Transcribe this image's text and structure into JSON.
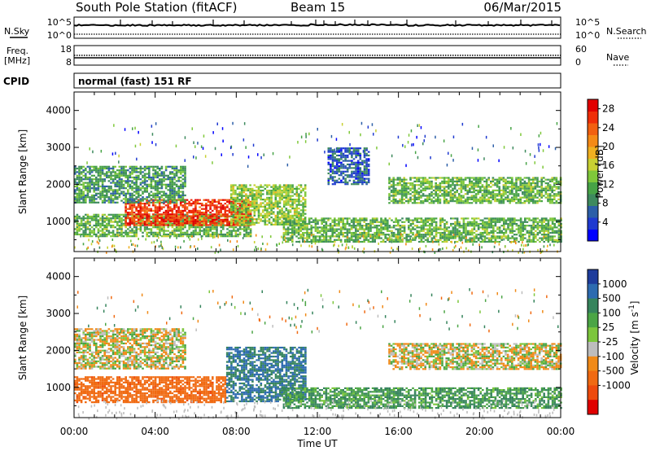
{
  "header": {
    "station": "South Pole Station (fitACF)",
    "beam": "Beam 15",
    "date": "06/Mar/2015"
  },
  "side_labels": {
    "nsky": "N.Sky",
    "nsearch": "N.Search",
    "freq_line1": "Freq.",
    "freq_line2": "[MHz]",
    "nave": "Nave",
    "cpid": "CPID"
  },
  "strip_ticks": {
    "noise_left_top": "10^5",
    "noise_left_bottom": "10^0",
    "noise_right_top": "10^5",
    "noise_right_bottom": "10^0",
    "freq_left_top": "18",
    "freq_left_bottom": "8",
    "nave_right_top": "60",
    "nave_right_bottom": "0"
  },
  "cpid_text": "normal (fast) 151 RF",
  "colors": {
    "power": [
      "#0000ff",
      "#1f3ad0",
      "#2c5fa8",
      "#3e8a5e",
      "#47a346",
      "#7fc83a",
      "#c8d032",
      "#f0b020",
      "#f58a16",
      "#f26010",
      "#ef2e08",
      "#e20000"
    ],
    "velocity_pos": [
      "#1e3c9c",
      "#2d6bb0",
      "#36845c",
      "#4ba545",
      "#7cc63c"
    ],
    "velocity_zero": "#bdbdbd",
    "velocity_neg": [
      "#f08a18",
      "#f06a12",
      "#ee4a0c",
      "#e00000"
    ]
  },
  "chart_data": [
    {
      "type": "heatmap",
      "title": "",
      "xlabel": "",
      "ylabel": "Slant Range [km]",
      "x_ticks": [
        "00:00",
        "04:00",
        "08:00",
        "12:00",
        "16:00",
        "20:00",
        "00:00"
      ],
      "y_ticks": [
        "1000",
        "2000",
        "3000",
        "4000"
      ],
      "ylim": [
        180,
        4500
      ],
      "xlim_hours": [
        0,
        24
      ],
      "colorbar": {
        "label": "Power [dB]",
        "ticks": [
          "4",
          "8",
          "12",
          "16",
          "20",
          "24",
          "28"
        ],
        "range": [
          0,
          30
        ]
      },
      "echo_bands": [
        {
          "start_h": 0.0,
          "end_h": 8.7,
          "range_km": [
            600,
            1200
          ],
          "level": 12
        },
        {
          "start_h": 2.5,
          "end_h": 8.7,
          "range_km": [
            900,
            1600
          ],
          "level": 26
        },
        {
          "start_h": 0.0,
          "end_h": 5.5,
          "range_km": [
            1500,
            2500
          ],
          "level": 10
        },
        {
          "start_h": 7.7,
          "end_h": 11.4,
          "range_km": [
            900,
            2000
          ],
          "level": 14
        },
        {
          "start_h": 10.3,
          "end_h": 24.0,
          "range_km": [
            450,
            1100
          ],
          "level": 12
        },
        {
          "start_h": 15.5,
          "end_h": 24.0,
          "range_km": [
            1500,
            2200
          ],
          "level": 12
        },
        {
          "start_h": 12.5,
          "end_h": 14.5,
          "range_km": [
            2000,
            3000
          ],
          "level": 6
        }
      ]
    },
    {
      "type": "heatmap",
      "title": "",
      "xlabel": "Time UT",
      "ylabel": "Slant Range [km]",
      "x_ticks": [
        "00:00",
        "04:00",
        "08:00",
        "12:00",
        "16:00",
        "20:00",
        "00:00"
      ],
      "y_ticks": [
        "1000",
        "2000",
        "3000",
        "4000"
      ],
      "ylim": [
        180,
        4500
      ],
      "xlim_hours": [
        0,
        24
      ],
      "colorbar": {
        "label": "Velocity [m s-1]",
        "ticks": [
          "1000",
          "500",
          "100",
          "25",
          "-25",
          "-100",
          "-500",
          "-1000"
        ]
      },
      "echo_bands": [
        {
          "start_h": 0.0,
          "end_h": 7.5,
          "range_km": [
            600,
            1300
          ],
          "velocity": -300
        },
        {
          "start_h": 0.0,
          "end_h": 5.5,
          "range_km": [
            1500,
            2600
          ],
          "velocity": 0
        },
        {
          "start_h": 7.5,
          "end_h": 11.4,
          "range_km": [
            600,
            2100
          ],
          "velocity": 400
        },
        {
          "start_h": 10.3,
          "end_h": 24.0,
          "range_km": [
            450,
            1000
          ],
          "velocity": 150
        },
        {
          "start_h": 15.5,
          "end_h": 24.0,
          "range_km": [
            1500,
            2200
          ],
          "velocity": 0
        }
      ]
    }
  ]
}
